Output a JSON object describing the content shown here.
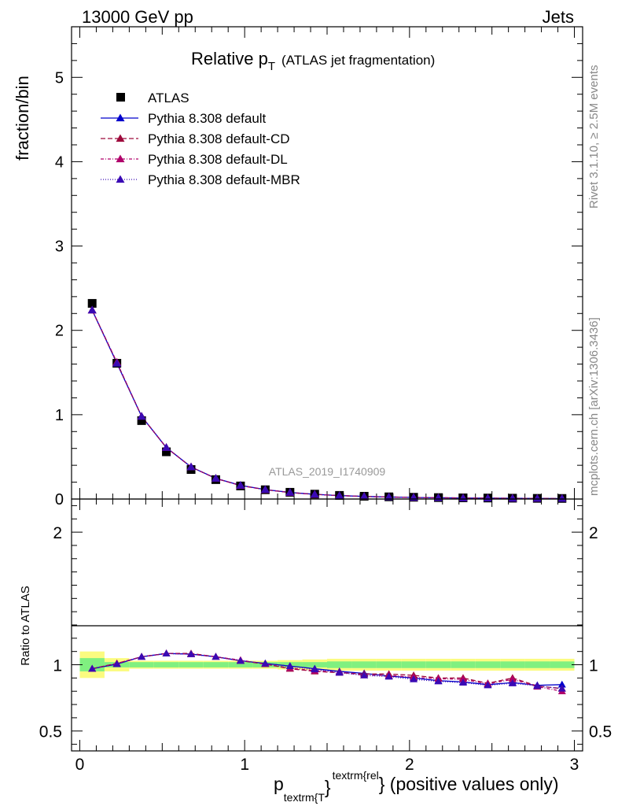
{
  "header": {
    "energy": "13000 GeV pp",
    "process": "Jets"
  },
  "side_labels": {
    "rivet": "Rivet 3.1.10, ≥ 2.5M events",
    "mcplots": "mcplots.cern.ch [arXiv:1306.3436]"
  },
  "chart_data": [
    {
      "type": "scatter",
      "title": "Relative p_T",
      "title_main": "Relative p",
      "title_sub": "T",
      "title_note": "(ATLAS jet fragmentation)",
      "analysis_label": "ATLAS_2019_I1740909",
      "ylabel": "fraction/bin",
      "xlim": [
        -0.05,
        3.05
      ],
      "ylim": [
        0,
        5.6
      ],
      "yticks": [
        0,
        1,
        2,
        3,
        4,
        5
      ],
      "x": [
        0.075,
        0.225,
        0.375,
        0.525,
        0.675,
        0.825,
        0.975,
        1.125,
        1.275,
        1.425,
        1.575,
        1.725,
        1.875,
        2.025,
        2.175,
        2.325,
        2.475,
        2.625,
        2.775,
        2.925
      ],
      "legend": [
        "ATLAS",
        "Pythia 8.308 default",
        "Pythia 8.308 default-CD",
        "Pythia 8.308 default-DL",
        "Pythia 8.308 default-MBR"
      ],
      "series": [
        {
          "name": "ATLAS",
          "color": "#000000",
          "marker": "square",
          "values": [
            2.32,
            1.61,
            0.93,
            0.56,
            0.35,
            0.23,
            0.155,
            0.11,
            0.08,
            0.058,
            0.043,
            0.033,
            0.026,
            0.021,
            0.017,
            0.014,
            0.012,
            0.01,
            0.008,
            0.007
          ]
        },
        {
          "name": "Pythia 8.308 default",
          "color": "#0000cc",
          "marker": "triangle",
          "dash": "",
          "values": [
            2.24,
            1.61,
            0.98,
            0.61,
            0.38,
            0.245,
            0.162,
            0.112,
            0.078,
            0.056,
            0.041,
            0.031,
            0.024,
            0.019,
            0.015,
            0.012,
            0.01,
            0.0087,
            0.0068,
            0.0059
          ]
        },
        {
          "name": "Pythia 8.308 default-CD",
          "color": "#9e0a3c",
          "marker": "triangle",
          "dash": "6,3",
          "values": [
            2.24,
            1.62,
            0.98,
            0.61,
            0.38,
            0.244,
            0.16,
            0.111,
            0.077,
            0.055,
            0.041,
            0.031,
            0.024,
            0.019,
            0.015,
            0.013,
            0.01,
            0.0089,
            0.0067,
            0.0057
          ]
        },
        {
          "name": "Pythia 8.308 default-DL",
          "color": "#b0006a",
          "marker": "triangle",
          "dash": "4,2,1,2",
          "values": [
            2.24,
            1.62,
            0.98,
            0.61,
            0.38,
            0.244,
            0.16,
            0.111,
            0.076,
            0.055,
            0.041,
            0.03,
            0.024,
            0.019,
            0.015,
            0.013,
            0.01,
            0.0088,
            0.0067,
            0.0056
          ]
        },
        {
          "name": "Pythia 8.308 default-MBR",
          "color": "#3a0ab4",
          "marker": "triangle",
          "dash": "1,2",
          "values": [
            2.24,
            1.61,
            0.98,
            0.61,
            0.38,
            0.245,
            0.162,
            0.112,
            0.078,
            0.056,
            0.041,
            0.031,
            0.024,
            0.019,
            0.015,
            0.012,
            0.01,
            0.0087,
            0.0067,
            0.0056
          ]
        }
      ]
    },
    {
      "type": "scatter",
      "ylabel": "Ratio to ATLAS",
      "xlabel": "p_textrm{T}^textrm{rel} (positive values only)",
      "xlabel_main": "p",
      "xlabel_sub": "textrm{T",
      "xlabel_sup": "textrm{rel",
      "xlabel_close": "}",
      "xlabel_tail": "} (positive values only)",
      "xlim": [
        -0.05,
        3.05
      ],
      "ylim": [
        0.35,
        2.25
      ],
      "yticks": [
        0.5,
        1,
        2
      ],
      "yticklabels": [
        "0.5",
        "1",
        "2"
      ],
      "xticks": [
        0,
        1,
        2,
        3
      ],
      "xticklabels": [
        "0",
        "1",
        "2",
        "3"
      ],
      "x": [
        0.075,
        0.225,
        0.375,
        0.525,
        0.675,
        0.825,
        0.975,
        1.125,
        1.275,
        1.425,
        1.575,
        1.725,
        1.875,
        2.025,
        2.175,
        2.325,
        2.475,
        2.625,
        2.775,
        2.925
      ],
      "bands": {
        "stat": [
          0.05,
          0.02,
          0.02,
          0.02,
          0.02,
          0.02,
          0.02,
          0.02,
          0.02,
          0.02,
          0.025,
          0.025,
          0.025,
          0.025,
          0.025,
          0.025,
          0.025,
          0.025,
          0.025,
          0.025
        ],
        "total": [
          0.1,
          0.05,
          0.03,
          0.03,
          0.03,
          0.03,
          0.03,
          0.03,
          0.035,
          0.04,
          0.045,
          0.045,
          0.045,
          0.045,
          0.045,
          0.045,
          0.045,
          0.045,
          0.045,
          0.045
        ],
        "stat_color": "#80f080",
        "total_color": "#fbfb80"
      },
      "series": [
        {
          "name": "Pythia 8.308 default",
          "color": "#0000cc",
          "dash": "",
          "values": [
            0.97,
            1.005,
            1.06,
            1.085,
            1.08,
            1.06,
            1.03,
            1.01,
            0.99,
            0.97,
            0.95,
            0.935,
            0.915,
            0.9,
            0.88,
            0.87,
            0.85,
            0.865,
            0.845,
            0.85
          ]
        },
        {
          "name": "Pythia 8.308 default-CD",
          "color": "#9e0a3c",
          "dash": "6,3",
          "values": [
            0.97,
            1.01,
            1.06,
            1.085,
            1.085,
            1.06,
            1.03,
            1.005,
            0.97,
            0.95,
            0.94,
            0.93,
            0.93,
            0.92,
            0.9,
            0.9,
            0.86,
            0.9,
            0.84,
            0.82
          ]
        },
        {
          "name": "Pythia 8.308 default-DL",
          "color": "#b0006a",
          "dash": "4,2,1,2",
          "values": [
            0.97,
            1.01,
            1.06,
            1.085,
            1.08,
            1.06,
            1.035,
            1.005,
            0.975,
            0.955,
            0.945,
            0.92,
            0.92,
            0.905,
            0.895,
            0.89,
            0.855,
            0.89,
            0.835,
            0.8
          ]
        },
        {
          "name": "Pythia 8.308 default-MBR",
          "color": "#3a0ab4",
          "dash": "1,2",
          "values": [
            0.97,
            1.005,
            1.06,
            1.085,
            1.08,
            1.06,
            1.03,
            1.01,
            0.99,
            0.965,
            0.94,
            0.92,
            0.91,
            0.89,
            0.875,
            0.865,
            0.845,
            0.86,
            0.84,
            0.82
          ]
        }
      ]
    }
  ]
}
